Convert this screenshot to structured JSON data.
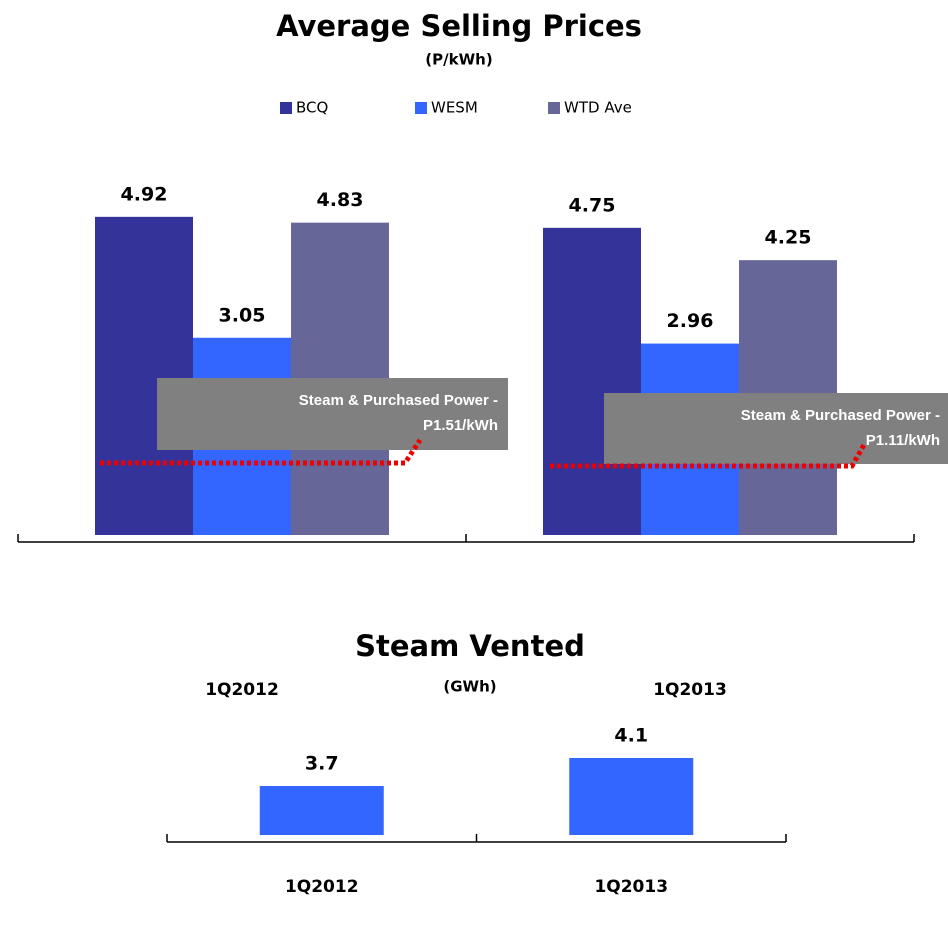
{
  "chart_data": [
    {
      "type": "bar",
      "title": "Average Selling Prices",
      "subtitle": "(P/kWh)",
      "categories": [
        "1Q2012",
        "1Q2013"
      ],
      "series": [
        {
          "name": "BCQ",
          "color": "#333399",
          "values": [
            4.92,
            4.75
          ]
        },
        {
          "name": "WESM",
          "color": "#3366ff",
          "values": [
            3.05,
            2.96
          ]
        },
        {
          "name": "WTD Ave",
          "color": "#666699",
          "values": [
            4.83,
            4.25
          ]
        }
      ],
      "ylim": [
        0,
        6
      ],
      "legend": "top",
      "annotations": [
        {
          "text": [
            "Steam  & Purchased Power -",
            "P1.51/kWh"
          ]
        },
        {
          "text": [
            "Steam & Purchased Power -",
            "P1.11/kWh"
          ]
        }
      ]
    },
    {
      "type": "bar",
      "title": "Steam Vented",
      "subtitle": "(GWh)",
      "categories": [
        "1Q2012",
        "1Q2013"
      ],
      "values": [
        3.7,
        4.1
      ],
      "color": "#3366ff",
      "ylim": [
        3,
        5
      ]
    }
  ]
}
